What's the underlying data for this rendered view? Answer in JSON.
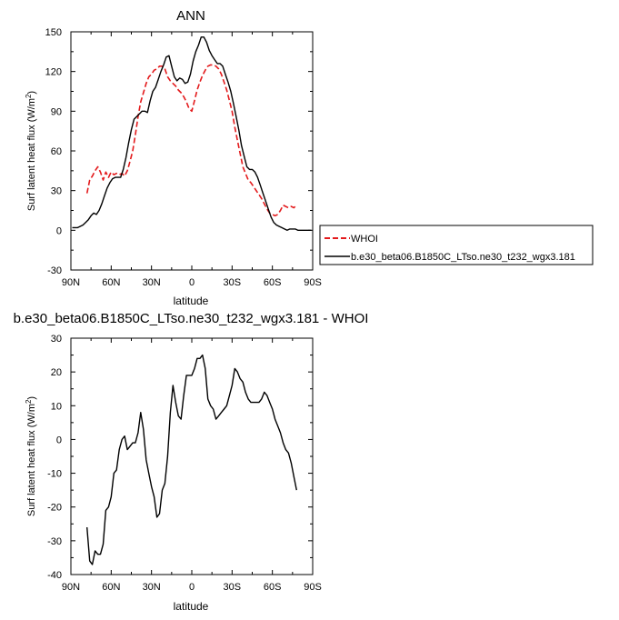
{
  "chart_data": [
    {
      "type": "line",
      "title": "ANN",
      "xlabel": "latitude",
      "ylabel": "Surf latent heat flux (W/m",
      "ylabel_sup": "2",
      "ylabel_close": ")",
      "xlim": [
        90,
        -90
      ],
      "ylim": [
        -30,
        150
      ],
      "x_ticks": [
        90,
        60,
        30,
        0,
        -30,
        -60,
        -90
      ],
      "x_tick_labels": [
        "90N",
        "60N",
        "30N",
        "0",
        "30S",
        "60S",
        "90S"
      ],
      "y_ticks": [
        -30,
        0,
        30,
        60,
        90,
        120,
        150
      ],
      "y_tick_labels": [
        "-30",
        "0",
        "30",
        "60",
        "90",
        "120",
        "150"
      ],
      "legend_position": "right",
      "series": [
        {
          "name": "WHOI",
          "style": "dashed",
          "color": "#e31a1c",
          "x": [
            78,
            76,
            74,
            72,
            70,
            68,
            66,
            64,
            62,
            60,
            58,
            56,
            54,
            52,
            50,
            48,
            46,
            44,
            42,
            40,
            38,
            36,
            34,
            32,
            30,
            28,
            26,
            24,
            22,
            20,
            18,
            16,
            14,
            12,
            10,
            8,
            6,
            4,
            2,
            0,
            -2,
            -4,
            -6,
            -8,
            -10,
            -12,
            -14,
            -16,
            -18,
            -20,
            -22,
            -24,
            -26,
            -28,
            -30,
            -32,
            -34,
            -36,
            -38,
            -40,
            -42,
            -44,
            -46,
            -48,
            -50,
            -52,
            -54,
            -56,
            -58,
            -60,
            -62,
            -64,
            -66,
            -68,
            -70,
            -72,
            -74,
            -76,
            -78
          ],
          "y": [
            28,
            38,
            41,
            45,
            48,
            44,
            38,
            44,
            40,
            44,
            42,
            43,
            42,
            43,
            41,
            45,
            52,
            60,
            72,
            86,
            97,
            104,
            111,
            116,
            118,
            121,
            122,
            124,
            124,
            122,
            116,
            113,
            111,
            109,
            106,
            104,
            101,
            97,
            92,
            90,
            98,
            106,
            112,
            117,
            121,
            124,
            125,
            125,
            124,
            122,
            118,
            112,
            106,
            98,
            90,
            78,
            68,
            58,
            48,
            43,
            38,
            36,
            33,
            30,
            27,
            24,
            20,
            16,
            13,
            12,
            11,
            12,
            15,
            19,
            18,
            17,
            18,
            17,
            19
          ]
        },
        {
          "name": "b.e30_beta06.B1850C_LTso.ne30_t232_wgx3.181",
          "style": "solid",
          "color": "#000000",
          "x": [
            89,
            87,
            85,
            83,
            81,
            79,
            77,
            75,
            73,
            71,
            69,
            67,
            65,
            63,
            61,
            59,
            57,
            55,
            53,
            51,
            49,
            47,
            45,
            43,
            41,
            39,
            37,
            35,
            33,
            31,
            29,
            27,
            25,
            23,
            21,
            19,
            17,
            15,
            13,
            11,
            9,
            7,
            5,
            3,
            1,
            -1,
            -3,
            -5,
            -7,
            -9,
            -11,
            -13,
            -15,
            -17,
            -19,
            -21,
            -23,
            -25,
            -27,
            -29,
            -31,
            -33,
            -35,
            -37,
            -39,
            -41,
            -43,
            -45,
            -47,
            -49,
            -51,
            -53,
            -55,
            -57,
            -59,
            -61,
            -63,
            -65,
            -67,
            -69,
            -71,
            -73,
            -75,
            -77,
            -79,
            -81,
            -83,
            -85,
            -87,
            -89
          ],
          "y": [
            2,
            2,
            2,
            3,
            4,
            6,
            8,
            11,
            13,
            12,
            15,
            20,
            26,
            32,
            36,
            39,
            40,
            40,
            40,
            46,
            55,
            66,
            76,
            84,
            86,
            88,
            90,
            90,
            89,
            98,
            105,
            108,
            114,
            120,
            125,
            131,
            132,
            124,
            116,
            113,
            115,
            114,
            111,
            112,
            118,
            128,
            135,
            140,
            146,
            146,
            142,
            136,
            132,
            129,
            126,
            126,
            124,
            118,
            112,
            105,
            96,
            86,
            76,
            64,
            56,
            48,
            46,
            46,
            44,
            40,
            34,
            28,
            22,
            16,
            10,
            6,
            4,
            3,
            2,
            1,
            0,
            1,
            1,
            1,
            0,
            0,
            0,
            0,
            0,
            0
          ]
        }
      ]
    },
    {
      "type": "line",
      "title": "b.e30_beta06.B1850C_LTso.ne30_t232_wgx3.181 - WHOI",
      "xlabel": "latitude",
      "ylabel": "Surf latent heat flux (W/m",
      "ylabel_sup": "2",
      "ylabel_close": ")",
      "xlim": [
        90,
        -90
      ],
      "ylim": [
        -40,
        30
      ],
      "x_ticks": [
        90,
        60,
        30,
        0,
        -30,
        -60,
        -90
      ],
      "x_tick_labels": [
        "90N",
        "60N",
        "30N",
        "0",
        "30S",
        "60S",
        "90S"
      ],
      "y_ticks": [
        -40,
        -30,
        -20,
        -10,
        0,
        10,
        20,
        30
      ],
      "y_tick_labels": [
        "-40",
        "-30",
        "-20",
        "-10",
        "0",
        "10",
        "20",
        "30"
      ],
      "series": [
        {
          "name": "b.e30_beta06.B1850C_LTso.ne30_t232_wgx3.181 - WHOI",
          "style": "solid",
          "color": "#000000",
          "x": [
            78,
            76,
            74,
            72,
            70,
            68,
            66,
            64,
            62,
            60,
            58,
            56,
            54,
            52,
            50,
            48,
            46,
            44,
            42,
            40,
            38,
            36,
            34,
            32,
            30,
            28,
            26,
            24,
            22,
            20,
            18,
            16,
            14,
            12,
            10,
            8,
            6,
            4,
            2,
            0,
            -2,
            -4,
            -6,
            -8,
            -10,
            -12,
            -14,
            -16,
            -18,
            -20,
            -22,
            -24,
            -26,
            -28,
            -30,
            -32,
            -34,
            -36,
            -38,
            -40,
            -42,
            -44,
            -46,
            -48,
            -50,
            -52,
            -54,
            -56,
            -58,
            -60,
            -62,
            -64,
            -66,
            -68,
            -70,
            -72,
            -74,
            -76,
            -78
          ],
          "y": [
            -26,
            -36,
            -37,
            -33,
            -34,
            -34,
            -31,
            -21,
            -20,
            -17,
            -10,
            -9,
            -3,
            0,
            1,
            -3,
            -2,
            -1,
            -1,
            2,
            8,
            3,
            -6,
            -10,
            -14,
            -17,
            -23,
            -22,
            -15,
            -13,
            -5,
            8,
            16,
            11,
            7,
            6,
            13,
            19,
            19,
            19,
            21,
            24,
            24,
            25,
            21,
            12,
            10,
            9,
            6,
            7,
            8,
            9,
            10,
            13,
            16,
            21,
            20,
            18,
            17,
            14,
            12,
            11,
            11,
            11,
            11,
            12,
            14,
            13,
            11,
            9,
            6,
            4,
            2,
            -1,
            -3,
            -4,
            -7,
            -11,
            -15
          ]
        }
      ]
    }
  ]
}
